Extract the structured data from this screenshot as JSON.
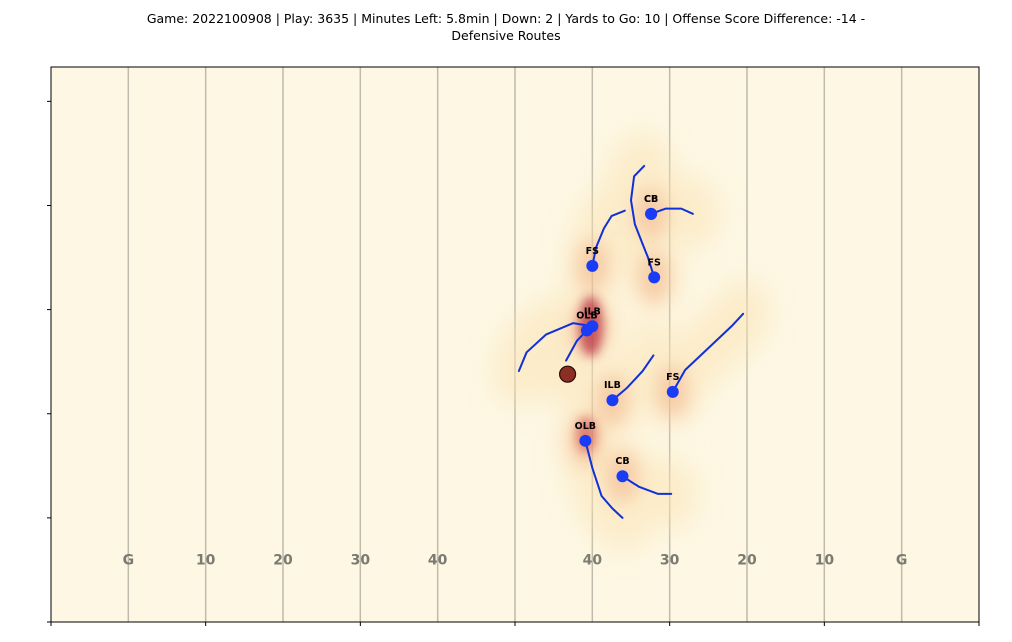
{
  "title_line1": "Game: 2022100908 | Play: 3635 | Minutes Left: 5.8min | Down: 2 | Yards to Go: 10 | Offense Score Difference: -14 -",
  "title_line2": "Defensive Routes",
  "colors": {
    "field": "#fdf7e3",
    "yard_line": "#bfbcad",
    "yard_label": "#7a7a72",
    "player": "#1a3cf5",
    "route": "#1030d8",
    "ball_fill": "#8b2e24",
    "ball_edge": "#2a0a05",
    "density_low": "#fbe3b4",
    "density_high": "#b5283d"
  },
  "chart_data": {
    "type": "scatter",
    "title": "Game: 2022100908 | Play: 3635 | Minutes Left: 5.8min | Down: 2 | Yards to Go: 10 | Offense Score Difference: -14 - Defensive Routes",
    "xlim": [
      0,
      120
    ],
    "ylim": [
      0,
      53.3
    ],
    "grid": false,
    "yard_lines_x": [
      10,
      20,
      30,
      40,
      50,
      60,
      70,
      80,
      90,
      100,
      110
    ],
    "yard_labels": [
      {
        "x": 10,
        "text": "G"
      },
      {
        "x": 20,
        "text": "10"
      },
      {
        "x": 30,
        "text": "20"
      },
      {
        "x": 40,
        "text": "30"
      },
      {
        "x": 50,
        "text": "40"
      },
      {
        "x": 70,
        "text": "40"
      },
      {
        "x": 80,
        "text": "30"
      },
      {
        "x": 90,
        "text": "20"
      },
      {
        "x": 100,
        "text": "10"
      },
      {
        "x": 110,
        "text": "G"
      }
    ],
    "yard_label_y": 5.5,
    "ball": {
      "x": 66.8,
      "y": 23.8
    },
    "players": [
      {
        "position": "CB",
        "x": 77.6,
        "y": 39.2,
        "route": [
          [
            76.5,
            36.3
          ],
          [
            75.5,
            38.2
          ],
          [
            75.0,
            40.5
          ],
          [
            75.4,
            42.8
          ],
          [
            76.7,
            43.8
          ]
        ]
      },
      {
        "position": "CB",
        "x": 77.6,
        "y": 39.2,
        "route": [
          [
            77.6,
            39.2
          ],
          [
            79.5,
            39.7
          ],
          [
            81.5,
            39.7
          ],
          [
            83.0,
            39.2
          ]
        ]
      },
      {
        "position": "FS",
        "x": 70.0,
        "y": 34.2,
        "route": [
          [
            70.0,
            34.2
          ],
          [
            70.5,
            36.0
          ],
          [
            71.5,
            37.8
          ],
          [
            72.5,
            39.0
          ],
          [
            74.2,
            39.5
          ]
        ]
      },
      {
        "position": "FS",
        "x": 78.0,
        "y": 33.1,
        "route": [
          [
            78.0,
            33.1
          ],
          [
            77.2,
            35.0
          ],
          [
            76.5,
            36.3
          ]
        ]
      },
      {
        "position": "ILB",
        "x": 70.0,
        "y": 28.4,
        "route": [
          [
            70.0,
            28.4
          ],
          [
            67.5,
            28.7
          ],
          [
            64.0,
            27.6
          ],
          [
            61.5,
            25.9
          ],
          [
            60.5,
            24.1
          ]
        ]
      },
      {
        "position": "OLB",
        "x": 69.3,
        "y": 28.0,
        "route": [
          [
            69.3,
            28.0
          ],
          [
            68.0,
            27.0
          ],
          [
            66.6,
            25.1
          ]
        ]
      },
      {
        "position": "ILB",
        "x": 72.6,
        "y": 21.3,
        "route": [
          [
            72.6,
            21.3
          ],
          [
            74.5,
            22.5
          ],
          [
            76.5,
            24.1
          ],
          [
            77.9,
            25.6
          ]
        ]
      },
      {
        "position": "FS",
        "x": 80.4,
        "y": 22.1,
        "route": [
          [
            80.4,
            22.1
          ],
          [
            82.0,
            24.2
          ],
          [
            85.0,
            26.3
          ],
          [
            88.0,
            28.4
          ],
          [
            89.5,
            29.6
          ]
        ]
      },
      {
        "position": "OLB",
        "x": 69.1,
        "y": 17.4,
        "route": [
          [
            69.1,
            17.4
          ],
          [
            70.0,
            14.8
          ],
          [
            71.2,
            12.1
          ],
          [
            72.6,
            10.9
          ],
          [
            73.9,
            10.0
          ]
        ]
      },
      {
        "position": "CB",
        "x": 73.9,
        "y": 14.0,
        "route": [
          [
            73.9,
            14.0
          ],
          [
            76.0,
            13.0
          ],
          [
            78.5,
            12.3
          ],
          [
            80.2,
            12.3
          ]
        ]
      }
    ]
  }
}
